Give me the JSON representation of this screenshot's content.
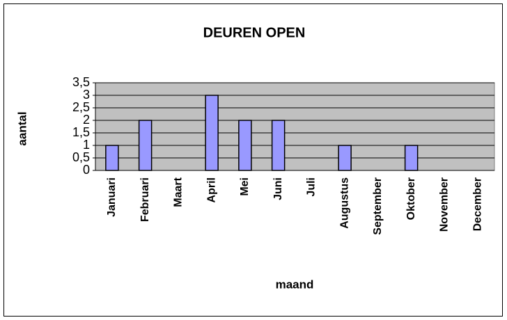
{
  "chart_data": {
    "type": "bar",
    "title": "DEUREN OPEN",
    "x_label": "maand",
    "y_label": "aantal",
    "categories": [
      "Januari",
      "Februari",
      "Maart",
      "April",
      "Mei",
      "Juni",
      "Juli",
      "Augustus",
      "September",
      "Oktober",
      "November",
      "December"
    ],
    "values": [
      1,
      2,
      0,
      3,
      2,
      2,
      0,
      1,
      0,
      1,
      0,
      0
    ],
    "color": "#9999ff",
    "ylim": [
      0,
      3.5
    ],
    "yticks": [
      0,
      {
        "value": 0.5,
        "label": "0,5"
      },
      1,
      {
        "value": 1.5,
        "label": "1,5"
      },
      2,
      {
        "value": 2.5,
        "label": "2,5"
      },
      3,
      {
        "value": 3.5,
        "label": "3,5"
      }
    ],
    "grid": true
  }
}
